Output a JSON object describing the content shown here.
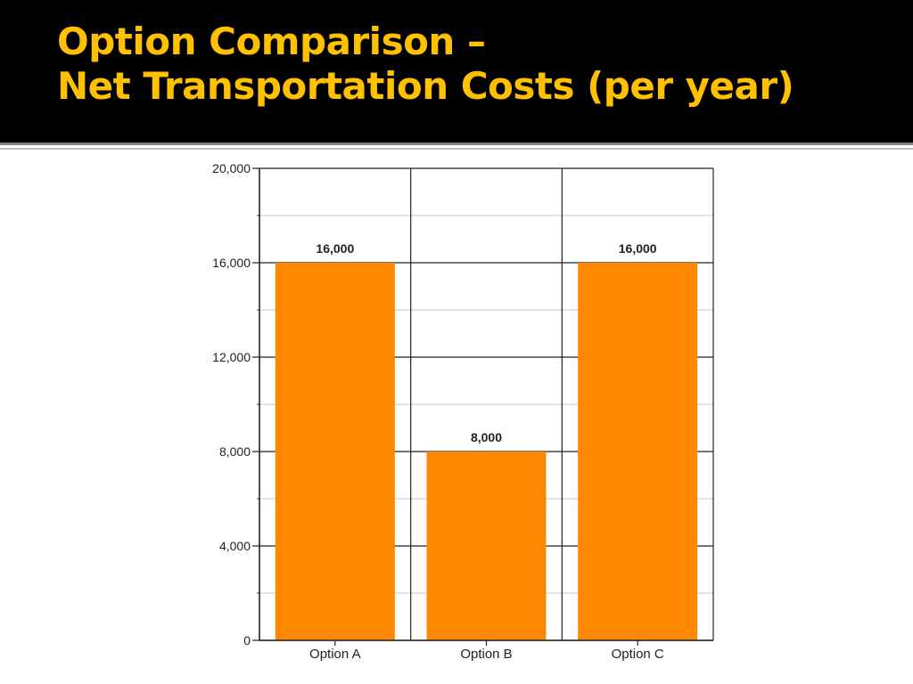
{
  "slide": {
    "title_line1": "Option Comparison –",
    "title_line2": "Net Transportation Costs (per year)"
  },
  "colors": {
    "title_background": "#000000",
    "title_text": "#ffc000",
    "bar": "#ff8800"
  },
  "chart_data": {
    "type": "bar",
    "categories": [
      "Option A",
      "Option B",
      "Option C"
    ],
    "values": [
      16000,
      8000,
      16000
    ],
    "data_labels": [
      "16,000",
      "8,000",
      "16,000"
    ],
    "ylim": [
      0,
      20000
    ],
    "y_ticks": [
      0,
      4000,
      8000,
      12000,
      16000,
      20000
    ],
    "y_tick_labels": [
      "0",
      "4,000",
      "8,000",
      "12,000",
      "16,000",
      "20,000"
    ],
    "grid": true,
    "legend": "none"
  }
}
